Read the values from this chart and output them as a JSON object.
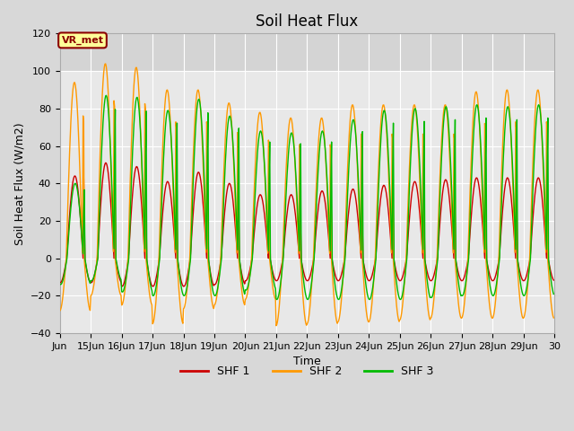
{
  "title": "Soil Heat Flux",
  "ylabel": "Soil Heat Flux (W/m2)",
  "xlabel": "Time",
  "ylim": [
    -40,
    120
  ],
  "xlim_days": [
    14,
    30
  ],
  "outer_bg_color": "#d8d8d8",
  "plot_bg_color": "#e8e8e8",
  "shf1_color": "#cc0000",
  "shf2_color": "#ff9900",
  "shf3_color": "#00bb00",
  "xtick_labels": [
    "Jun",
    "15Jun",
    "16Jun",
    "17Jun",
    "18Jun",
    "19Jun",
    "20Jun",
    "21Jun",
    "22Jun",
    "23Jun",
    "24Jun",
    "25Jun",
    "26Jun",
    "27Jun",
    "28Jun",
    "29Jun",
    "30"
  ],
  "annotation_text": "VR_met",
  "annotation_box_color": "#ffff99",
  "annotation_border_color": "#8b0000",
  "legend_labels": [
    "SHF 1",
    "SHF 2",
    "SHF 3"
  ],
  "title_fontsize": 12,
  "axis_fontsize": 9,
  "tick_fontsize": 8,
  "shf1_day_amps": [
    44,
    51,
    49,
    41,
    46,
    40,
    34,
    34,
    36,
    37,
    39,
    41,
    42,
    43,
    43,
    43
  ],
  "shf2_day_amps": [
    94,
    104,
    102,
    90,
    90,
    83,
    78,
    75,
    75,
    82,
    82,
    82,
    82,
    89,
    90,
    90
  ],
  "shf3_day_amps": [
    40,
    87,
    86,
    79,
    85,
    76,
    68,
    67,
    68,
    74,
    79,
    80,
    81,
    82,
    81,
    82
  ],
  "shf1_night_amps": [
    13,
    13,
    15,
    15,
    15,
    14,
    12,
    12,
    12,
    12,
    12,
    12,
    12,
    12,
    12,
    12
  ],
  "shf2_night_amps": [
    28,
    20,
    25,
    35,
    27,
    25,
    22,
    36,
    35,
    34,
    34,
    33,
    32,
    32,
    32,
    32
  ],
  "shf3_night_amps": [
    14,
    12,
    18,
    20,
    20,
    20,
    17,
    22,
    22,
    22,
    22,
    22,
    21,
    20,
    20,
    20
  ],
  "shf1_phase": 0.0,
  "shf2_phase": -0.015,
  "shf3_phase": 0.01
}
